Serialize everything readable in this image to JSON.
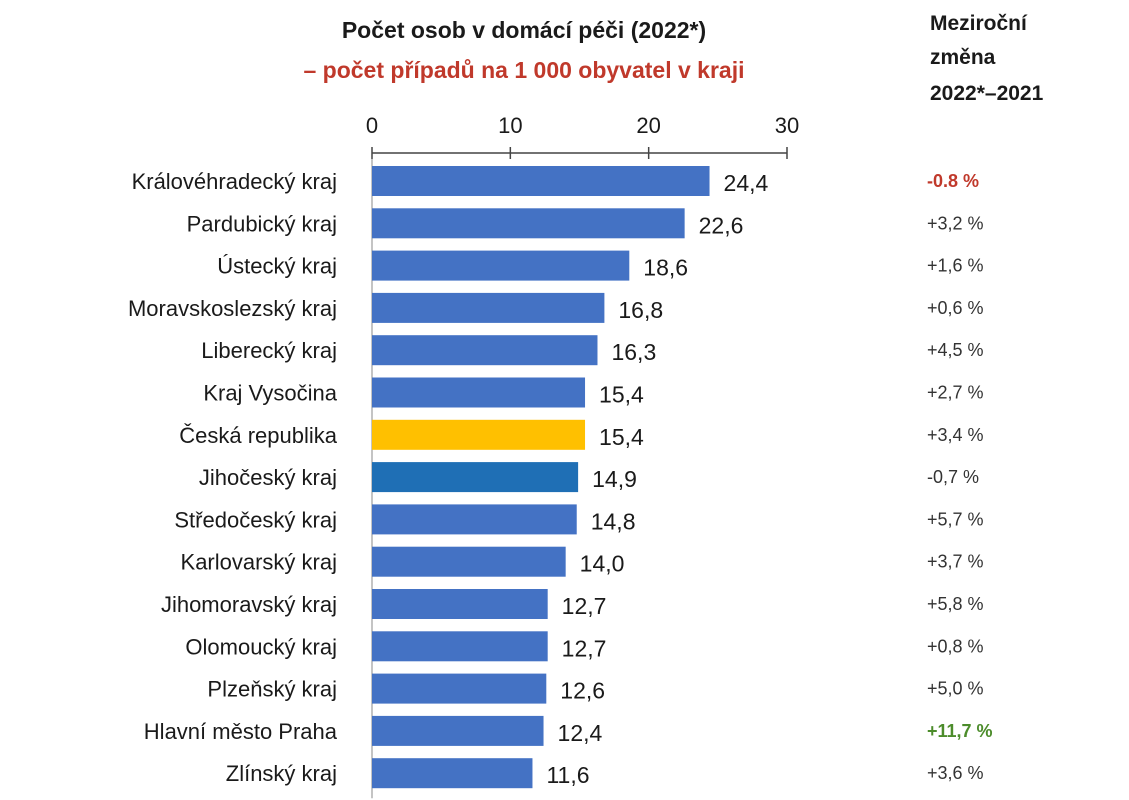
{
  "title": "Počet osob v domácí péči (2022*)",
  "subtitle": "– počet případů na 1 000 obyvatel v kraji",
  "change_header": [
    "Meziroční",
    "změna",
    "2022*–2021"
  ],
  "colors": {
    "bar_default": "#4472C4",
    "bar_country": "#FFC000",
    "bar_highlight": "#1F6FB5",
    "subtitle": "#C0392B",
    "change_negative_first": "#C0392B",
    "change_positive_max": "#4C8C2B",
    "change_default": "#333333"
  },
  "chart_data": {
    "type": "bar",
    "orientation": "horizontal",
    "title": "Počet osob v domácí péči (2022*)",
    "subtitle": "– počet případů na 1 000 obyvatel v kraji",
    "xlim": [
      0,
      30
    ],
    "xticks": [
      "0",
      "10",
      "20",
      "30"
    ],
    "grid": false,
    "categories": [
      "Královéhradecký kraj",
      "Pardubický kraj",
      "Ústecký kraj",
      "Moravskoslezský kraj",
      "Liberecký kraj",
      "Kraj Vysočina",
      "Česká republika",
      "Jihočeský kraj",
      "Středočeský kraj",
      "Karlovarský kraj",
      "Jihomoravský kraj",
      "Olomoucký kraj",
      "Plzeňský kraj",
      "Hlavní město Praha",
      "Zlínský kraj"
    ],
    "values": [
      24.4,
      22.6,
      18.6,
      16.8,
      16.3,
      15.4,
      15.4,
      14.9,
      14.8,
      14.0,
      12.7,
      12.7,
      12.6,
      12.4,
      11.6
    ],
    "value_labels": [
      "24,4",
      "22,6",
      "18,6",
      "16,8",
      "16,3",
      "15,4",
      "15,4",
      "14,9",
      "14,8",
      "14,0",
      "12,7",
      "12,7",
      "12,6",
      "12,4",
      "11,6"
    ],
    "bar_colors": [
      "bar_default",
      "bar_default",
      "bar_default",
      "bar_default",
      "bar_default",
      "bar_default",
      "bar_country",
      "bar_highlight",
      "bar_default",
      "bar_default",
      "bar_default",
      "bar_default",
      "bar_default",
      "bar_default",
      "bar_default"
    ],
    "change_labels": [
      "-0.8 %",
      "+3,2 %",
      "+1,6 %",
      "+0,6 %",
      "+4,5 %",
      "+2,7 %",
      "+3,4 %",
      "-0,7 %",
      "+5,7 %",
      "+3,7 %",
      "+5,8 %",
      "+0,8 %",
      "+5,0 %",
      "+11,7 %",
      "+3,6 %"
    ],
    "change_colors": [
      "change_negative_first",
      "change_default",
      "change_default",
      "change_default",
      "change_default",
      "change_default",
      "change_default",
      "change_default",
      "change_default",
      "change_default",
      "change_default",
      "change_default",
      "change_default",
      "change_positive_max",
      "change_default"
    ]
  }
}
